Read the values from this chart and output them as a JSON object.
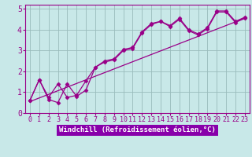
{
  "xlabel": "Windchill (Refroidissement éolien,°C)",
  "bg_color": "#c8e8e8",
  "plot_bg_color": "#c8e8e8",
  "line_color": "#990088",
  "grid_color": "#99bbbb",
  "xlabel_bg": "#8800aa",
  "xlabel_text_color": "#ffffff",
  "xlim": [
    -0.5,
    23.5
  ],
  "ylim": [
    0,
    5.2
  ],
  "yticks": [
    0,
    1,
    2,
    3,
    4,
    5
  ],
  "xticks": [
    0,
    1,
    2,
    3,
    4,
    5,
    6,
    7,
    8,
    9,
    10,
    11,
    12,
    13,
    14,
    15,
    16,
    17,
    18,
    19,
    20,
    21,
    22,
    23
  ],
  "series1_x": [
    0,
    1,
    2,
    3,
    4,
    5,
    6,
    7,
    8,
    9,
    10,
    11,
    12,
    13,
    14,
    15,
    16,
    17,
    18,
    19,
    20,
    21,
    22,
    23
  ],
  "series1_y": [
    0.6,
    1.6,
    0.65,
    0.5,
    1.4,
    0.8,
    1.1,
    2.2,
    2.5,
    2.6,
    3.05,
    3.15,
    3.9,
    4.3,
    4.4,
    4.2,
    4.55,
    4.0,
    3.8,
    4.1,
    4.9,
    4.9,
    4.4,
    4.6
  ],
  "series2_x": [
    0,
    1,
    2,
    3,
    4,
    5,
    6,
    7,
    8,
    9,
    10,
    11,
    12,
    13,
    14,
    15,
    16,
    17,
    18,
    19,
    20,
    21,
    22,
    23
  ],
  "series2_y": [
    0.6,
    1.6,
    0.75,
    1.4,
    0.75,
    0.85,
    1.55,
    2.2,
    2.45,
    2.55,
    3.0,
    3.1,
    3.85,
    4.25,
    4.4,
    4.15,
    4.5,
    3.95,
    3.75,
    4.05,
    4.85,
    4.85,
    4.35,
    4.55
  ],
  "trend_x": [
    0,
    23
  ],
  "trend_y": [
    0.55,
    4.55
  ],
  "marker_size": 4,
  "font_size_xlabel": 6.5,
  "font_size_ticks": 6
}
